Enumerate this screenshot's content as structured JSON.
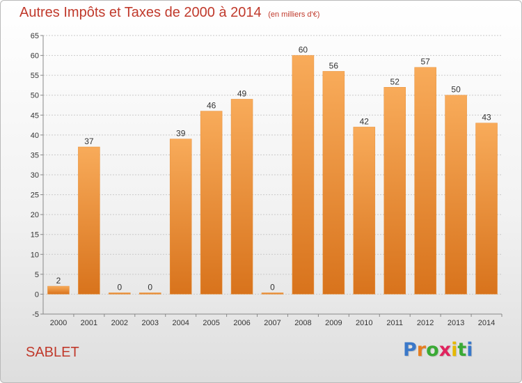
{
  "chart_data": {
    "type": "bar",
    "title": "Autres Impôts et Taxes de 2000 à 2014",
    "subtitle": "(en milliers d'€)",
    "categories": [
      "2000",
      "2001",
      "2002",
      "2003",
      "2004",
      "2005",
      "2006",
      "2007",
      "2008",
      "2009",
      "2010",
      "2011",
      "2012",
      "2013",
      "2014"
    ],
    "values": [
      2,
      37,
      0,
      0,
      39,
      46,
      49,
      0,
      60,
      56,
      42,
      52,
      57,
      50,
      43
    ],
    "ylim": [
      -5,
      65
    ],
    "yticks": [
      -5,
      0,
      5,
      10,
      15,
      20,
      25,
      30,
      35,
      40,
      45,
      50,
      55,
      60,
      65
    ],
    "grid": true,
    "xlabel": "",
    "ylabel": ""
  },
  "location": "SABLET",
  "logo": {
    "letters": [
      "P",
      "r",
      "o",
      "x",
      "i",
      "t",
      "i"
    ],
    "colors": [
      "#3a78c9",
      "#e67e22",
      "#3aaa35",
      "#e0245e",
      "#e6b800",
      "#3aaa35",
      "#3a78c9"
    ]
  },
  "colors": {
    "bar_top": "#f8ab5a",
    "bar_bottom": "#d8731c",
    "text_accent": "#c0392b",
    "grid": "#c9c9c9"
  }
}
